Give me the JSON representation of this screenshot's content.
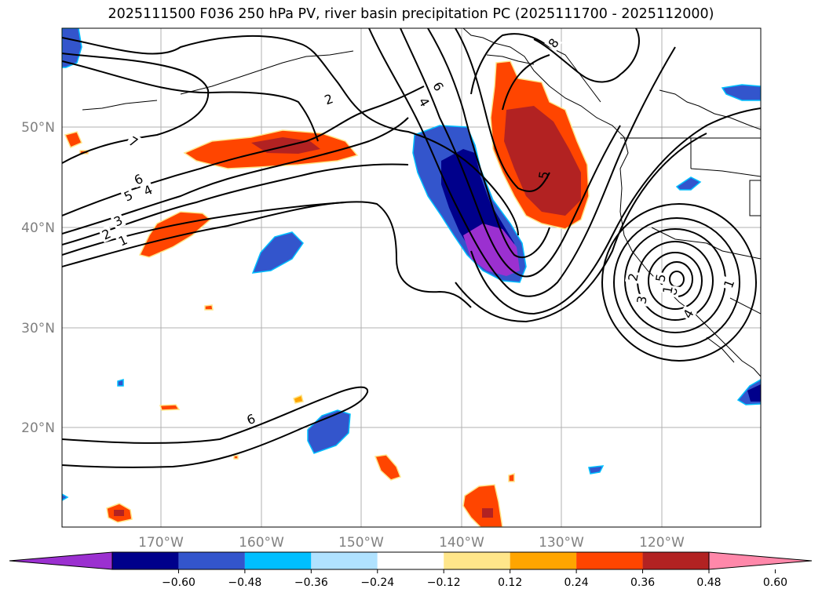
{
  "title": "2025111500 F036 250 hPa PV, river basin precipitation PC (2025111700 - 2025112000)",
  "lat_labels": [
    "50°N",
    "40°N",
    "30°N",
    "20°N"
  ],
  "lon_labels": [
    "170°W",
    "160°W",
    "150°W",
    "140°W",
    "130°W",
    "120°W"
  ],
  "colorbar": {
    "colors": [
      "#9b30d0",
      "#00008b",
      "#3355cc",
      "#00bfff",
      "#b0e2ff",
      "#ffffff",
      "#ffe68a",
      "#ffa500",
      "#ff4500",
      "#b22222",
      "#ff88aa"
    ],
    "tick_labels": [
      "−0.60",
      "−0.48",
      "−0.36",
      "−0.24",
      "−0.12",
      "0.12",
      "0.24",
      "0.36",
      "0.48",
      "0.60"
    ]
  },
  "contour_labels": [
    "2",
    "7",
    "6",
    "5",
    "4",
    "3",
    "2",
    "1",
    "4",
    "6",
    "8",
    "5",
    "2",
    "3",
    "5",
    "8",
    "1",
    "4",
    "1",
    "6"
  ]
}
